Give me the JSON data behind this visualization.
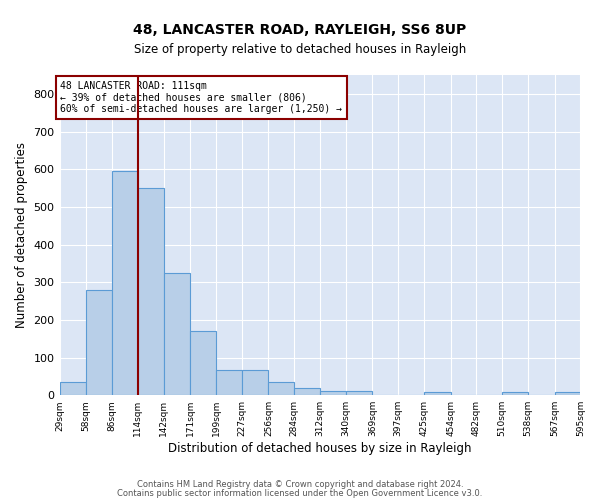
{
  "title1": "48, LANCASTER ROAD, RAYLEIGH, SS6 8UP",
  "title2": "Size of property relative to detached houses in Rayleigh",
  "xlabel": "Distribution of detached houses by size in Rayleigh",
  "ylabel": "Number of detached properties",
  "footer1": "Contains HM Land Registry data © Crown copyright and database right 2024.",
  "footer2": "Contains public sector information licensed under the Open Government Licence v3.0.",
  "annotation_line1": "48 LANCASTER ROAD: 111sqm",
  "annotation_line2": "← 39% of detached houses are smaller (806)",
  "annotation_line3": "60% of semi-detached houses are larger (1,250) →",
  "bar_color": "#b8cfe8",
  "bar_edge_color": "#5b9bd5",
  "vline_color": "#8b0000",
  "annotation_box_color": "#8b0000",
  "background_color": "#dce6f5",
  "grid_color": "#ffffff",
  "bin_edges": [
    29,
    58,
    86,
    114,
    142,
    171,
    199,
    227,
    256,
    284,
    312,
    340,
    369,
    397,
    425,
    454,
    482,
    510,
    538,
    567,
    595
  ],
  "bar_heights": [
    35,
    280,
    595,
    550,
    325,
    170,
    68,
    68,
    35,
    20,
    11,
    10,
    0,
    0,
    8,
    0,
    0,
    8,
    0,
    8
  ],
  "vline_x": 114,
  "ylim": [
    0,
    850
  ],
  "yticks": [
    0,
    100,
    200,
    300,
    400,
    500,
    600,
    700,
    800
  ]
}
